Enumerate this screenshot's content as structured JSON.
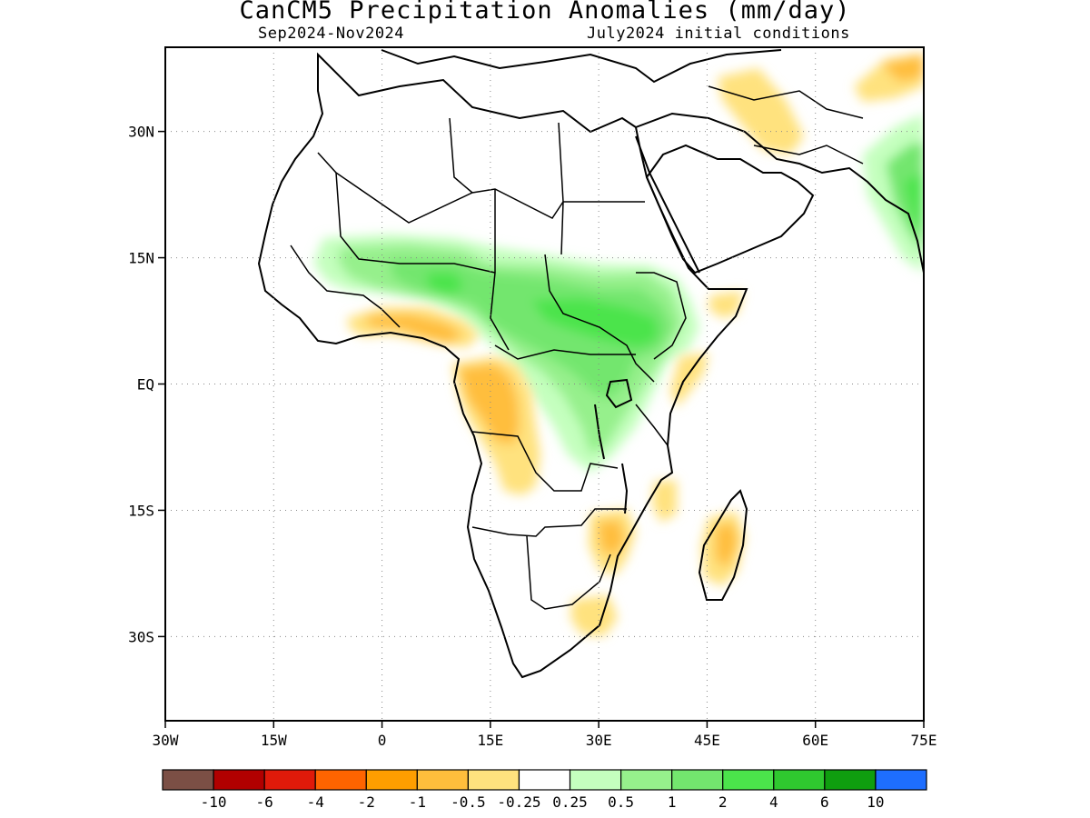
{
  "header": {
    "title": "CanCM5 Precipitation Anomalies (mm/day)",
    "period": "Sep2024-Nov2024",
    "initial_conditions": "July2024 initial conditions"
  },
  "map": {
    "region": "Africa",
    "lon_range": [
      -30,
      75
    ],
    "lat_range": [
      -40,
      40
    ],
    "lon_ticks": [
      {
        "value": -30,
        "label": "30W"
      },
      {
        "value": -15,
        "label": "15W"
      },
      {
        "value": 0,
        "label": "0"
      },
      {
        "value": 15,
        "label": "15E"
      },
      {
        "value": 30,
        "label": "30E"
      },
      {
        "value": 45,
        "label": "45E"
      },
      {
        "value": 60,
        "label": "60E"
      },
      {
        "value": 75,
        "label": "75E"
      }
    ],
    "lat_ticks": [
      {
        "value": 30,
        "label": "30N"
      },
      {
        "value": 15,
        "label": "15N"
      },
      {
        "value": 0,
        "label": "EQ"
      },
      {
        "value": -15,
        "label": "15S"
      },
      {
        "value": -30,
        "label": "30S"
      }
    ],
    "grid": "dotted"
  },
  "colorbar": {
    "colors": [
      "#7b4f45",
      "#b10000",
      "#e01a0a",
      "#ff6400",
      "#ff9e00",
      "#ffbe3c",
      "#ffe27e",
      "#ffffff",
      "#c4ffbe",
      "#96f08c",
      "#73e66e",
      "#4be44b",
      "#2fc82f",
      "#0f9e0f",
      "#1e6eff"
    ],
    "labels": [
      "-10",
      "-6",
      "-4",
      "-2",
      "-1",
      "-0.5",
      "-0.25",
      "0.25",
      "0.5",
      "1",
      "2",
      "4",
      "6",
      "10"
    ]
  }
}
